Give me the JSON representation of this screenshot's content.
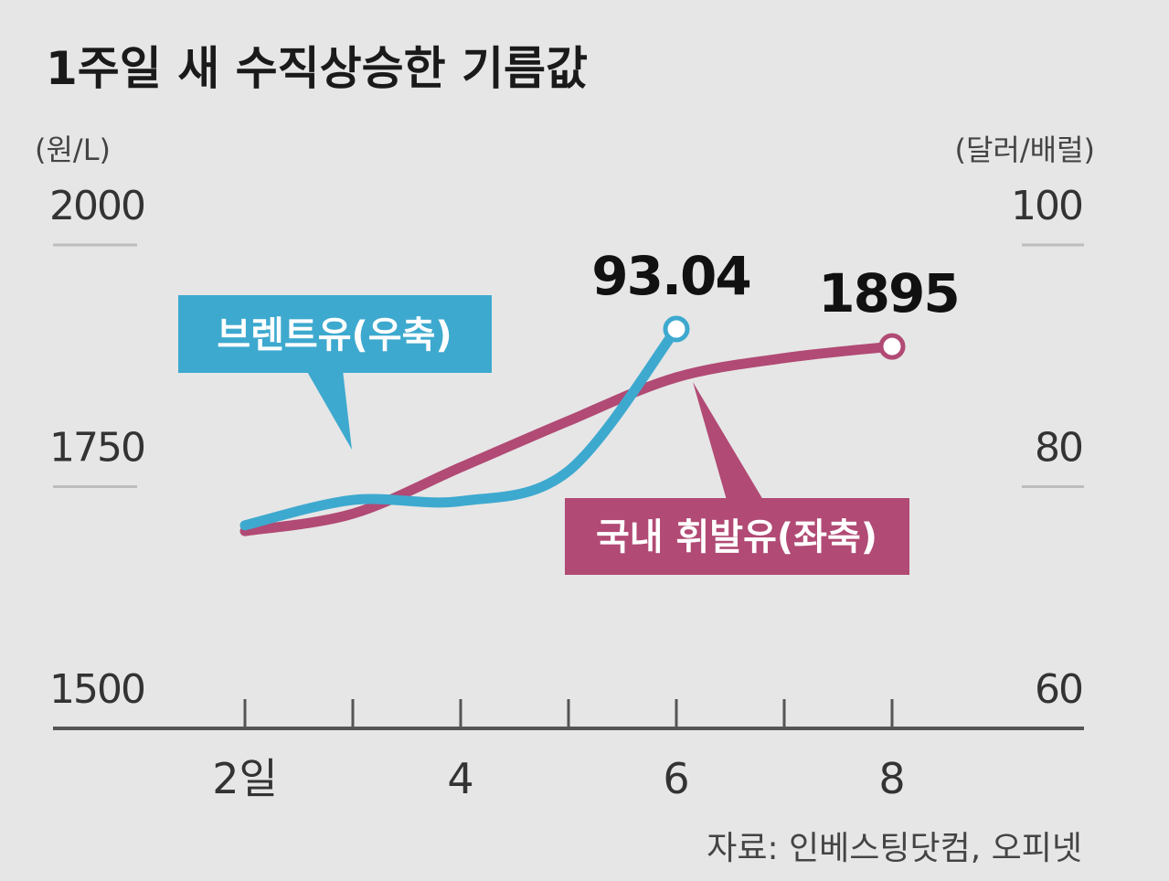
{
  "chart_data": {
    "type": "line",
    "title": "1주일 새 수직상승한 기름값",
    "left_axis": {
      "unit": "(원/L)",
      "range": [
        1500,
        2000
      ],
      "ticks": [
        "2000",
        "1750",
        "1500"
      ]
    },
    "right_axis": {
      "unit": "(달러/배럴)",
      "range": [
        60,
        100
      ],
      "ticks": [
        "100",
        "80",
        "60"
      ]
    },
    "x": {
      "range": [
        1,
        9
      ],
      "ticks": [
        2,
        3,
        4,
        5,
        6,
        7,
        8
      ],
      "labels": [
        {
          "x": 2,
          "text": "2일"
        },
        {
          "x": 4,
          "text": "4"
        },
        {
          "x": 6,
          "text": "6"
        },
        {
          "x": 8,
          "text": "8"
        }
      ]
    },
    "series": [
      {
        "name": "브렌트유(우축)",
        "axis": "right",
        "color": "#3ea9cf",
        "x": [
          2,
          3,
          4,
          5,
          6
        ],
        "values": [
          76.8,
          78.9,
          78.8,
          81.3,
          93.04
        ],
        "end_label": "93.04"
      },
      {
        "name": "국내 휘발유(좌축)",
        "axis": "left",
        "color": "#b14a74",
        "x": [
          2,
          3,
          4,
          5,
          6,
          7,
          8
        ],
        "values": [
          1704,
          1722,
          1770,
          1818,
          1863,
          1883,
          1895
        ],
        "end_label": "1895"
      }
    ],
    "grid": false,
    "source": "자료: 인베스팅닷컴, 오피넷"
  }
}
